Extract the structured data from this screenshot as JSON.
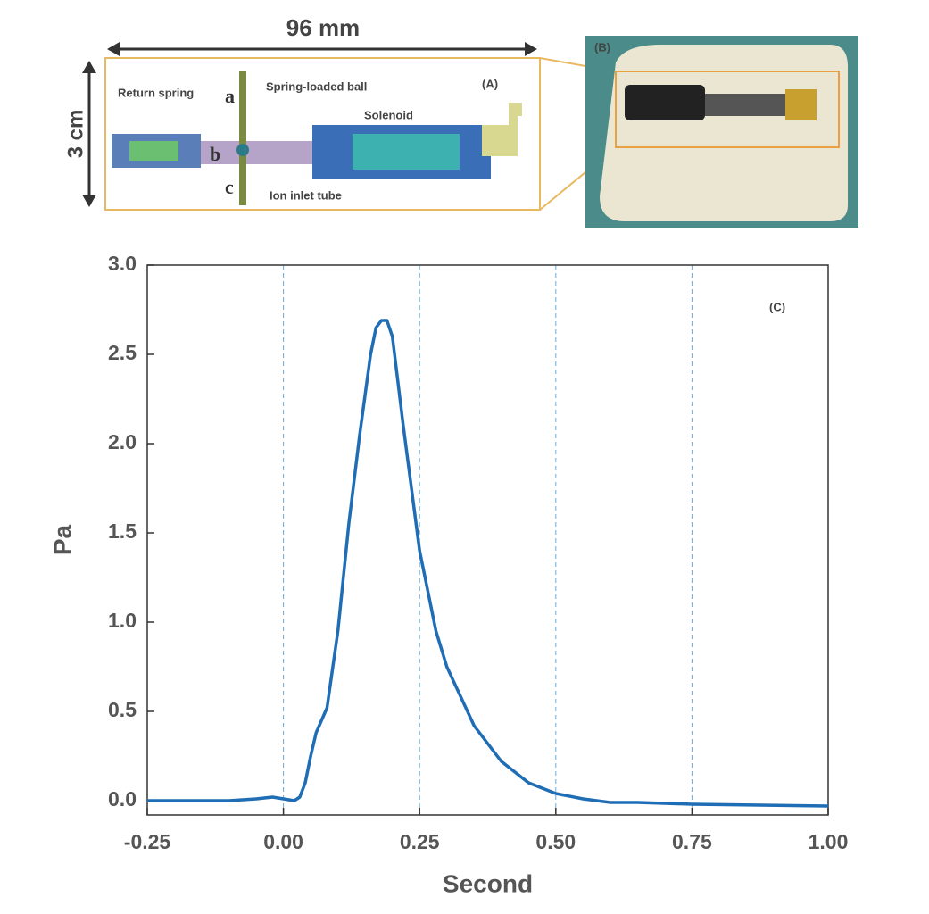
{
  "panels": {
    "width_label": "96 mm",
    "height_label": "3 cm",
    "a_label": "(A)",
    "return_spring": "Return spring",
    "spring_ball": "Spring-loaded ball",
    "solenoid": "Solenoid",
    "a": "a",
    "b": "b",
    "c": "c",
    "ion_inlet": "Ion inlet tube",
    "b_label": "(B)"
  },
  "chart_data": {
    "type": "line",
    "annotation": "(C)",
    "x_label": "Second",
    "y_label": "Pa",
    "x": [
      -0.25,
      -0.1,
      -0.05,
      -0.02,
      0.0,
      0.02,
      0.03,
      0.04,
      0.05,
      0.06,
      0.08,
      0.1,
      0.12,
      0.14,
      0.16,
      0.17,
      0.18,
      0.19,
      0.2,
      0.22,
      0.25,
      0.28,
      0.3,
      0.35,
      0.4,
      0.45,
      0.5,
      0.55,
      0.6,
      0.65,
      0.75,
      1.0
    ],
    "series": [
      {
        "name": "Pa",
        "color": "#1f6db5",
        "values": [
          0.0,
          0.0,
          0.01,
          0.02,
          0.01,
          0.0,
          0.02,
          0.1,
          0.25,
          0.38,
          0.52,
          0.95,
          1.55,
          2.05,
          2.5,
          2.65,
          2.69,
          2.69,
          2.6,
          2.1,
          1.4,
          0.95,
          0.75,
          0.42,
          0.22,
          0.1,
          0.04,
          0.01,
          -0.01,
          -0.01,
          -0.02,
          -0.03
        ]
      }
    ],
    "xlim": [
      -0.25,
      1.0
    ],
    "ylim": [
      -0.08,
      3.0
    ],
    "xticks": [
      {
        "value": -0.25,
        "label": "-0.25"
      },
      {
        "value": 0,
        "label": "0.00"
      },
      {
        "value": 0.25,
        "label": "0.25"
      },
      {
        "value": 0.5,
        "label": "0.50"
      },
      {
        "value": 0.75,
        "label": "0.75"
      },
      {
        "value": 1,
        "label": "1.00"
      }
    ],
    "yticks": [
      {
        "value": 0,
        "label": "0.0"
      },
      {
        "value": 0.5,
        "label": "0.5"
      },
      {
        "value": 1,
        "label": "1.0"
      },
      {
        "value": 1.5,
        "label": "1.5"
      },
      {
        "value": 2,
        "label": "2.0"
      },
      {
        "value": 2.5,
        "label": "2.5"
      },
      {
        "value": 3,
        "label": "3.0"
      }
    ],
    "grid": "x",
    "grid_color": "#6aaad8"
  }
}
